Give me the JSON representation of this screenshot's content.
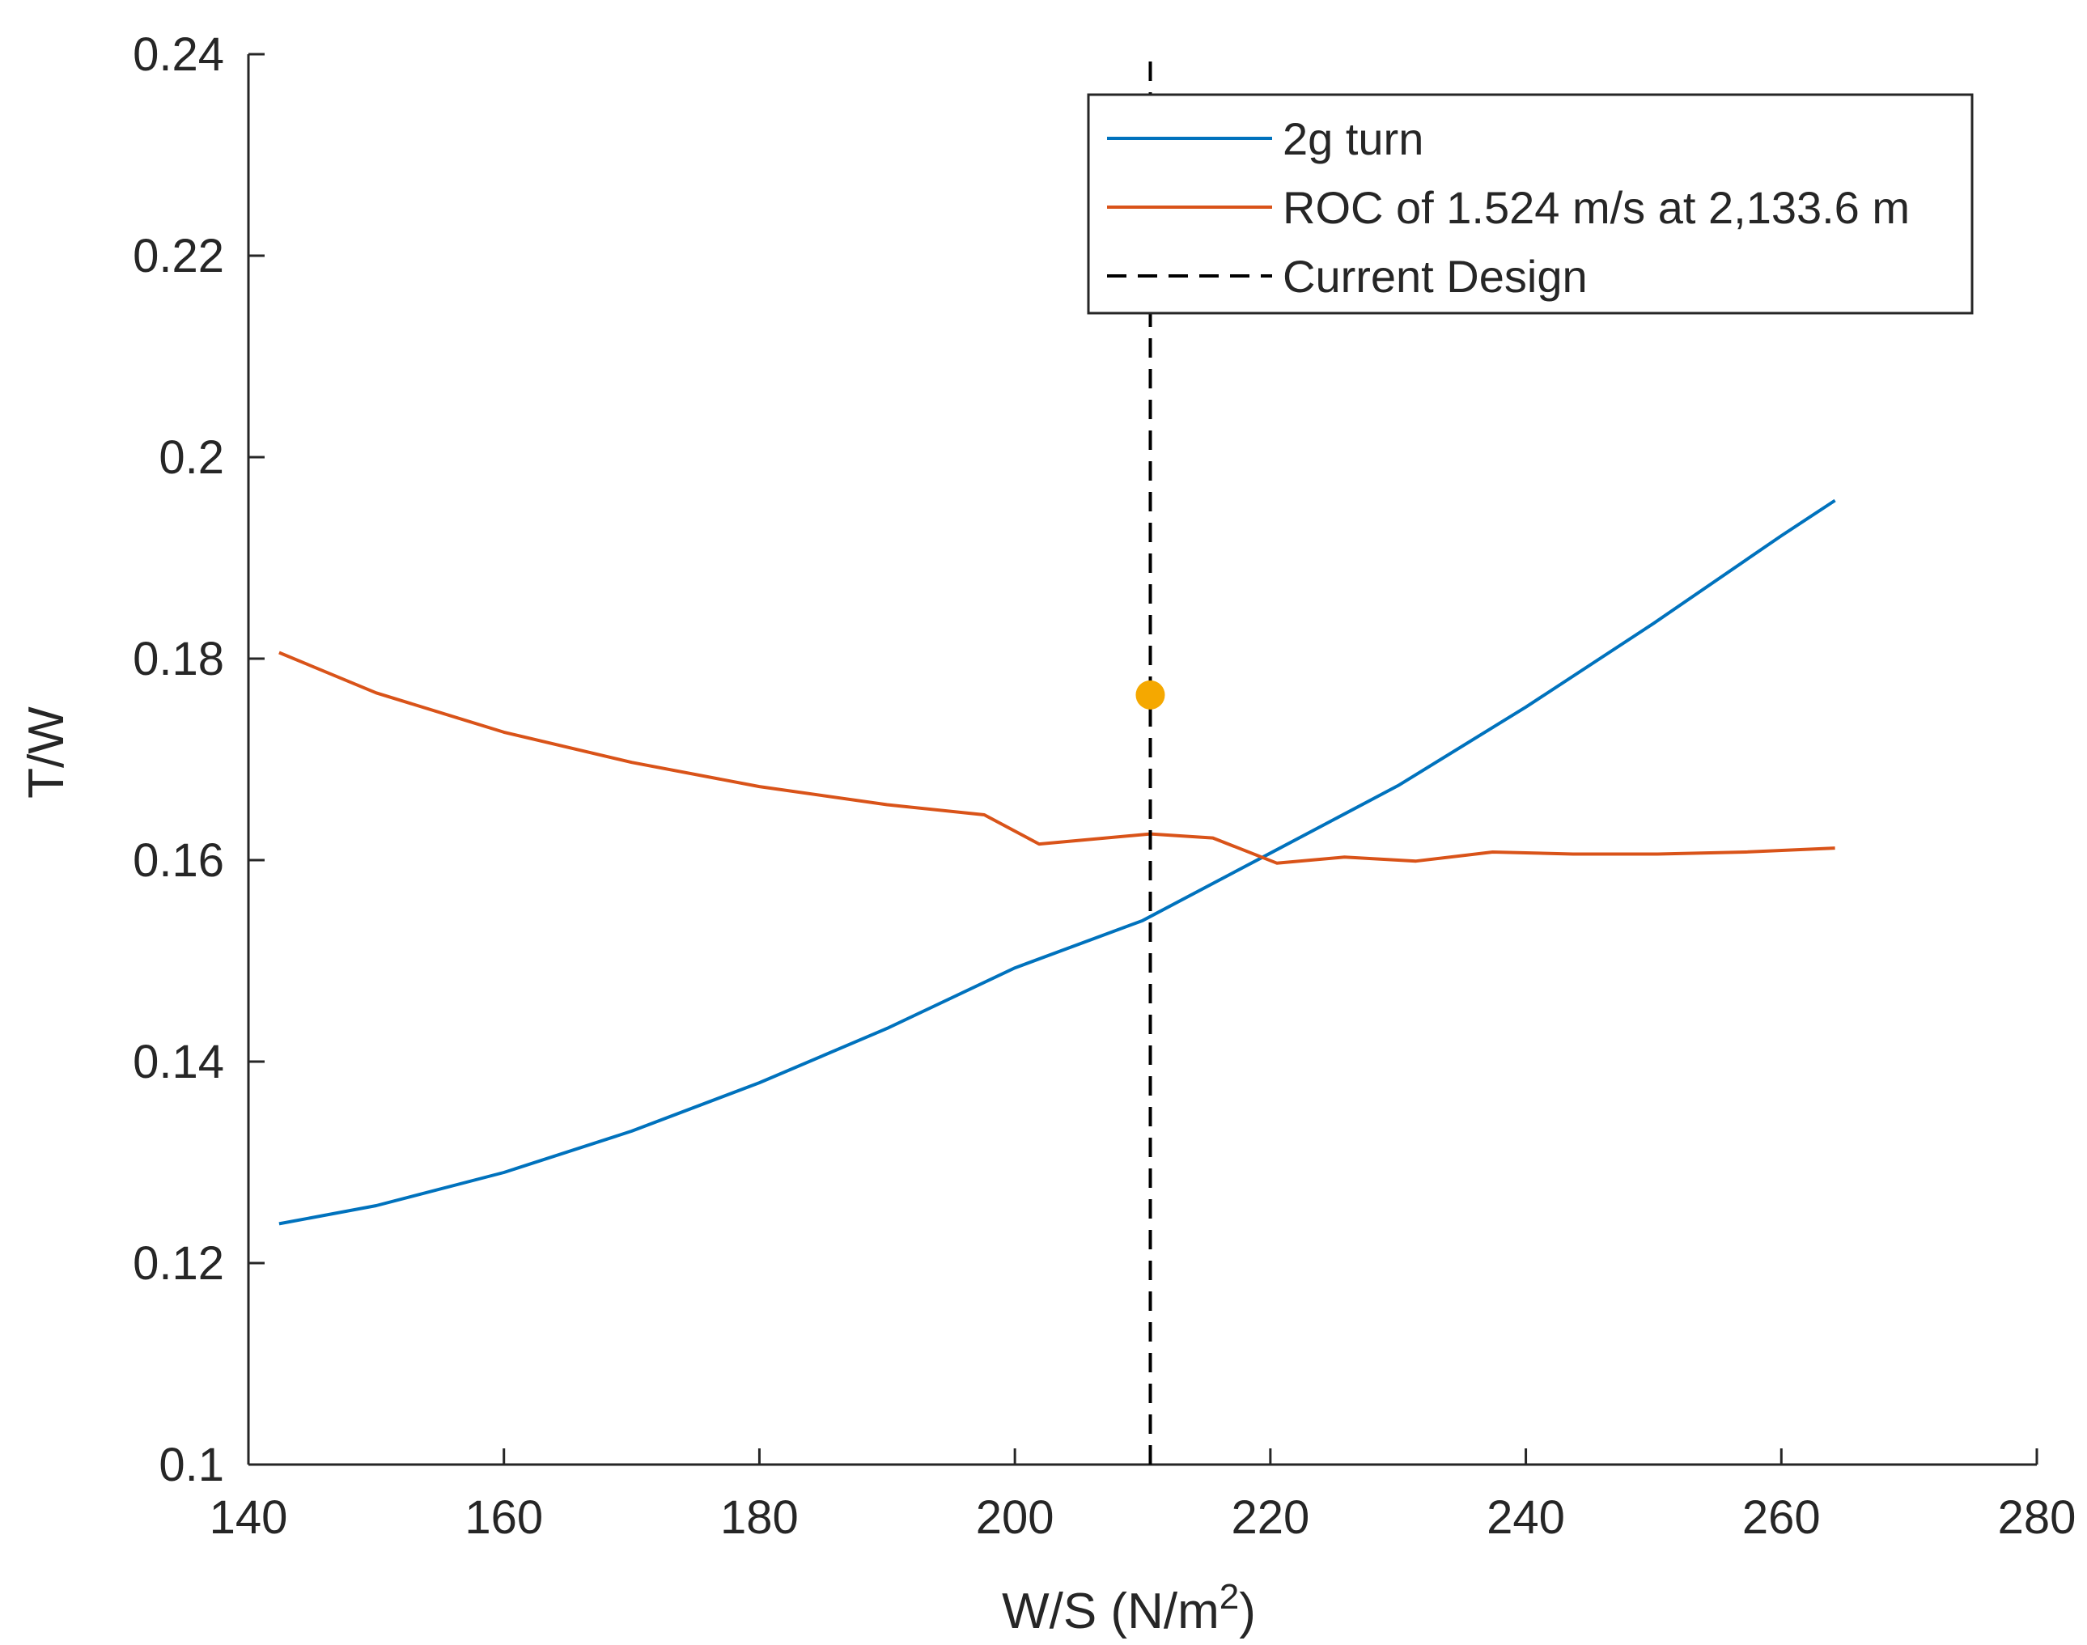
{
  "chart_data": {
    "type": "line",
    "xlabel_main": "W/S (N/m",
    "xlabel_sup": "2",
    "xlabel_close": ")",
    "ylabel": "T/W",
    "xlim": [
      140,
      280
    ],
    "ylim": [
      0.1,
      0.24
    ],
    "xticks": [
      140,
      160,
      180,
      200,
      220,
      240,
      260,
      280
    ],
    "yticks": [
      0.1,
      0.12,
      0.14,
      0.16,
      0.18,
      0.2,
      0.22,
      0.24
    ],
    "xtick_labels": [
      "140",
      "160",
      "180",
      "200",
      "220",
      "240",
      "260",
      "280"
    ],
    "ytick_labels": [
      "0.1",
      "0.12",
      "0.14",
      "0.16",
      "0.18",
      "0.2",
      "0.22",
      "0.24"
    ],
    "grid": false,
    "legend_position": "top-right",
    "series": [
      {
        "name": "2g turn",
        "color": "#0072BD",
        "style": "solid",
        "x": [
          142.4,
          150,
          160,
          170,
          180,
          190,
          200,
          210,
          220,
          230,
          240,
          250,
          260,
          264.2
        ],
        "y": [
          0.1239,
          0.1257,
          0.129,
          0.1331,
          0.1379,
          0.1433,
          0.1493,
          0.154,
          0.1607,
          0.1674,
          0.1752,
          0.1835,
          0.1922,
          0.1957
        ]
      },
      {
        "name": "ROC of 1.524 m/s at 2,133.6 m",
        "color": "#D95319",
        "style": "solid",
        "x": [
          142.4,
          150,
          160,
          170,
          180,
          190,
          197.6,
          201.9,
          210.6,
          215.5,
          220.5,
          225.8,
          231.4,
          237.4,
          243.7,
          250.3,
          257.2,
          264.2
        ],
        "y": [
          0.1806,
          0.1766,
          0.1727,
          0.1697,
          0.1673,
          0.1655,
          0.1645,
          0.1616,
          0.1626,
          0.1622,
          0.1597,
          0.1603,
          0.1599,
          0.1608,
          0.1606,
          0.1606,
          0.1608,
          0.1612
        ]
      },
      {
        "name": "Current Design",
        "color": "#000000",
        "style": "dashed",
        "x": [
          210.6,
          210.6
        ],
        "y": [
          0.1,
          0.24
        ]
      }
    ],
    "points": [
      {
        "x": 210.6,
        "y": 0.1764,
        "color": "#F5A800"
      }
    ]
  }
}
